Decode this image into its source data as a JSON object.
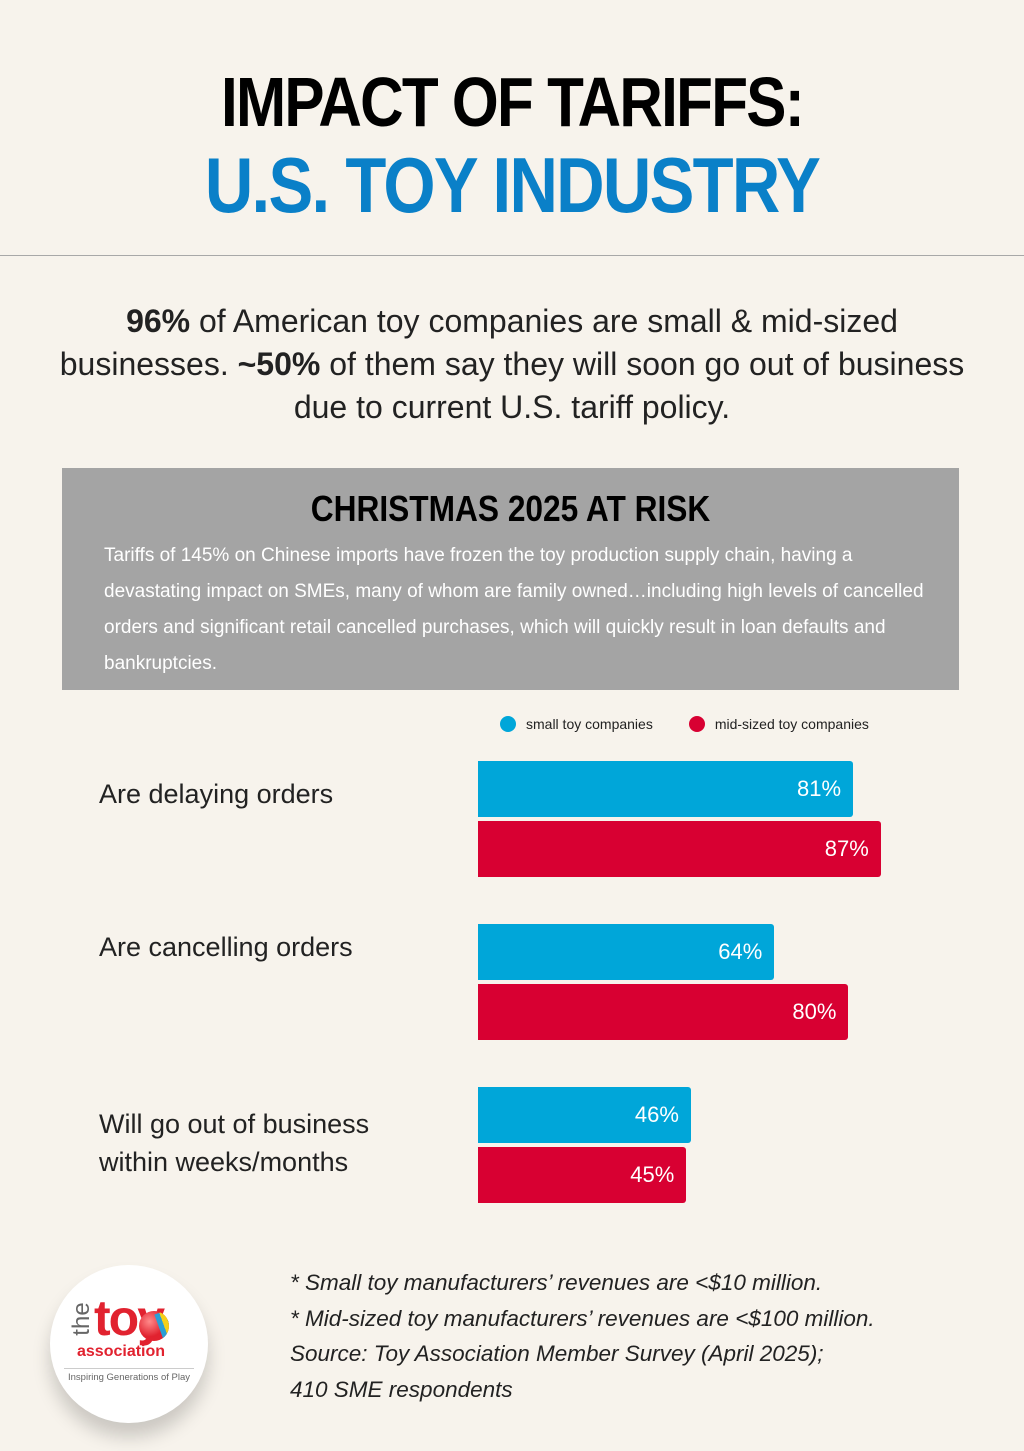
{
  "header": {
    "title_line1": "IMPACT OF TARIFFS:",
    "title_line2": "U.S. TOY INDUSTRY"
  },
  "intro": {
    "stat1": "96%",
    "text1": " of American toy companies are small & mid-sized businesses. ",
    "stat2": "~50%",
    "text2": " of them say they will soon go out of business due to current U.S. tariff policy."
  },
  "risk_box": {
    "title": "CHRISTMAS 2025 AT RISK",
    "body": "Tariffs of 145% on Chinese imports have frozen the toy production supply chain, having a devastating impact on SMEs, many of whom are family owned…including high levels of cancelled orders and significant retail cancelled purchases, which will quickly result in loan defaults and bankruptcies."
  },
  "colors": {
    "accent_blue": "#0a80c8",
    "small": "#00a6d9",
    "mid": "#d80032",
    "box_gray": "#a4a4a4"
  },
  "chart_data": {
    "type": "bar",
    "orientation": "horizontal",
    "categories": [
      "Are delaying orders",
      "Are cancelling orders",
      "Will go out of business within weeks/months"
    ],
    "series": [
      {
        "name": "small toy companies",
        "values": [
          81,
          64,
          46
        ]
      },
      {
        "name": "mid-sized toy companies",
        "values": [
          87,
          80,
          45
        ]
      }
    ],
    "value_labels": [
      [
        "81%",
        "64%",
        "46%"
      ],
      [
        "87%",
        "80%",
        "45%"
      ]
    ],
    "unit": "%",
    "xlim": [
      0,
      100
    ],
    "legend_position": "top-right",
    "grid": false
  },
  "logo": {
    "the": "the",
    "toy": "toy",
    "association": "association",
    "tagline": "Inspiring Generations of Play"
  },
  "notes": [
    "* Small toy manufacturers’ revenues are <$10 million.",
    "* Mid-sized toy manufacturers’  revenues are <$100 million.",
    "Source: Toy Association Member Survey (April 2025);",
    "410 SME respondents"
  ]
}
